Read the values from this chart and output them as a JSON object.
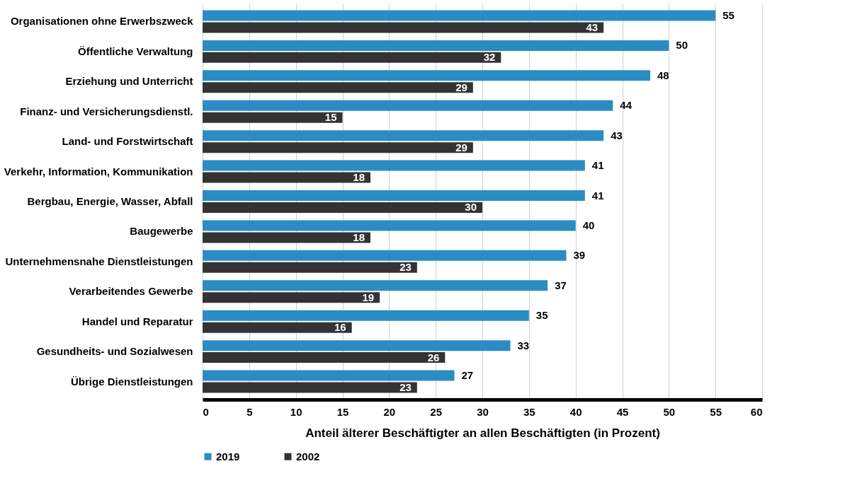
{
  "chart_data": {
    "type": "bar",
    "orientation": "horizontal",
    "xlabel": "Anteil älterer Beschäftigter an allen Beschäftigten (in Prozent)",
    "categories": [
      "Organisationen ohne Erwerbszweck",
      "Öffentliche Verwaltung",
      "Erziehung und Unterricht",
      "Finanz- und Versicherungsdienstl.",
      "Land- und Forstwirtschaft",
      "Verkehr, Information, Kommunikation",
      "Bergbau, Energie, Wasser, Abfall",
      "Baugewerbe",
      "Unternehmensnahe Dienstleistungen",
      "Verarbeitendes Gewerbe",
      "Handel und Reparatur",
      "Gesundheits- und Sozialwesen",
      "Übrige Dienstleistungen"
    ],
    "series": [
      {
        "name": "2019",
        "color": "#2b8cc4",
        "values": [
          55,
          50,
          48,
          44,
          43,
          41,
          41,
          40,
          39,
          37,
          35,
          33,
          27
        ]
      },
      {
        "name": "2002",
        "color": "#333333",
        "values": [
          43,
          32,
          29,
          15,
          29,
          18,
          30,
          18,
          23,
          19,
          16,
          26,
          23
        ]
      }
    ],
    "xlim": [
      0,
      60
    ],
    "xticks": [
      0,
      5,
      10,
      15,
      20,
      25,
      30,
      35,
      40,
      45,
      50,
      55,
      60
    ],
    "data_labels": true,
    "grid": "x",
    "legend": "bottom"
  }
}
